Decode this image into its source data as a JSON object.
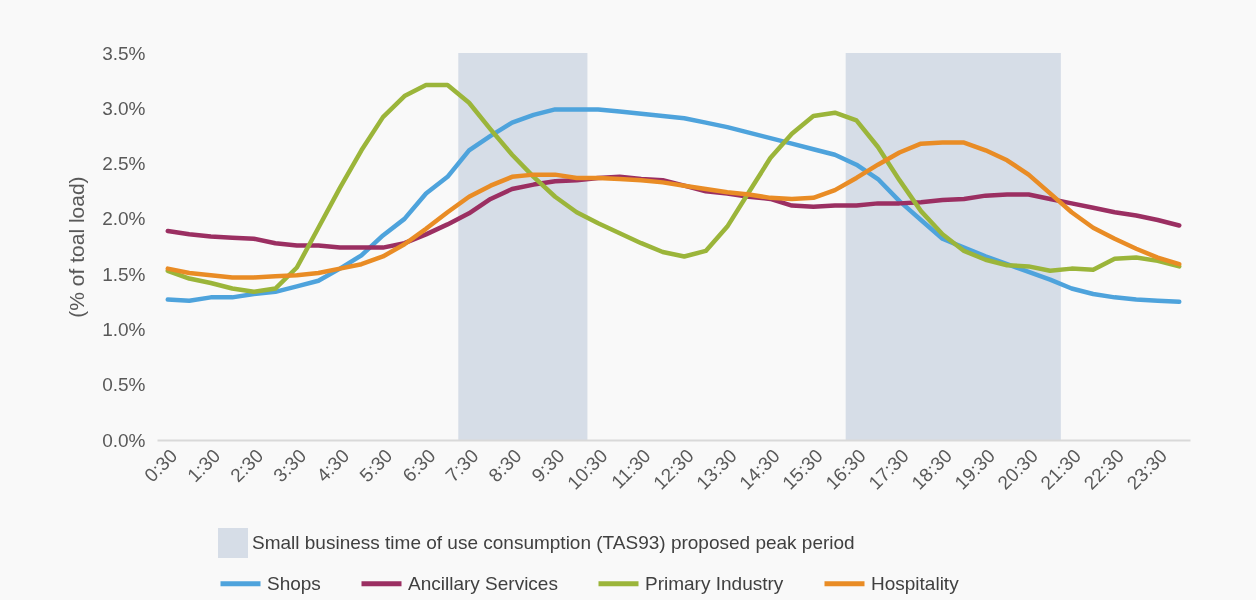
{
  "chart_data": {
    "type": "line",
    "ylabel": "(% of toal load)",
    "categories": [
      "0:30",
      null,
      "1:30",
      null,
      "2:30",
      null,
      "3:30",
      null,
      "4:30",
      null,
      "5:30",
      null,
      "6:30",
      null,
      "7:30",
      null,
      "8:30",
      null,
      "9:30",
      null,
      "10:30",
      null,
      "11:30",
      null,
      "12:30",
      null,
      "13:30",
      null,
      "14:30",
      null,
      "15:30",
      null,
      "16:30",
      null,
      "17:30",
      null,
      "18:30",
      null,
      "19:30",
      null,
      "20:30",
      null,
      "21:30",
      null,
      "22:30",
      null,
      "23:30",
      null
    ],
    "series": [
      {
        "name": "Shops",
        "color": "#4ea3dc",
        "values": [
          1.27,
          1.26,
          1.29,
          1.29,
          1.32,
          1.34,
          1.39,
          1.44,
          1.55,
          1.67,
          1.85,
          2.0,
          2.23,
          2.38,
          2.62,
          2.75,
          2.87,
          2.94,
          2.99,
          2.99,
          2.99,
          2.97,
          2.95,
          2.93,
          2.91,
          2.87,
          2.83,
          2.78,
          2.73,
          2.68,
          2.63,
          2.58,
          2.49,
          2.36,
          2.16,
          1.99,
          1.82,
          1.74,
          1.66,
          1.59,
          1.52,
          1.45,
          1.37,
          1.32,
          1.29,
          1.27,
          1.26,
          1.25
        ]
      },
      {
        "name": "Ancillary Services",
        "color": "#9b2f62",
        "values": [
          1.89,
          1.86,
          1.84,
          1.83,
          1.82,
          1.78,
          1.76,
          1.76,
          1.74,
          1.74,
          1.74,
          1.78,
          1.86,
          1.95,
          2.05,
          2.18,
          2.27,
          2.31,
          2.34,
          2.35,
          2.37,
          2.38,
          2.36,
          2.35,
          2.3,
          2.25,
          2.23,
          2.2,
          2.18,
          2.12,
          2.11,
          2.12,
          2.12,
          2.14,
          2.14,
          2.15,
          2.17,
          2.18,
          2.21,
          2.22,
          2.22,
          2.18,
          2.14,
          2.1,
          2.06,
          2.03,
          1.99,
          1.94
        ]
      },
      {
        "name": "Primary Industry",
        "color": "#9bb53a",
        "values": [
          1.53,
          1.46,
          1.42,
          1.37,
          1.34,
          1.37,
          1.56,
          1.92,
          2.28,
          2.62,
          2.92,
          3.11,
          3.21,
          3.21,
          3.05,
          2.81,
          2.58,
          2.38,
          2.2,
          2.06,
          1.96,
          1.87,
          1.78,
          1.7,
          1.66,
          1.71,
          1.93,
          2.24,
          2.55,
          2.77,
          2.93,
          2.96,
          2.89,
          2.65,
          2.35,
          2.07,
          1.86,
          1.71,
          1.63,
          1.58,
          1.57,
          1.53,
          1.55,
          1.54,
          1.64,
          1.65,
          1.62,
          1.57
        ]
      },
      {
        "name": "Hospitality",
        "color": "#e98c25",
        "values": [
          1.55,
          1.51,
          1.49,
          1.47,
          1.47,
          1.48,
          1.49,
          1.51,
          1.55,
          1.59,
          1.66,
          1.77,
          1.91,
          2.06,
          2.2,
          2.3,
          2.38,
          2.4,
          2.4,
          2.37,
          2.37,
          2.36,
          2.35,
          2.33,
          2.3,
          2.27,
          2.24,
          2.22,
          2.19,
          2.18,
          2.19,
          2.26,
          2.37,
          2.49,
          2.6,
          2.68,
          2.69,
          2.69,
          2.62,
          2.53,
          2.4,
          2.23,
          2.06,
          1.92,
          1.82,
          1.73,
          1.65,
          1.59
        ]
      }
    ],
    "ylim": [
      0,
      3.5
    ],
    "yticks": [
      {
        "value": 0,
        "label": "0.0%"
      },
      {
        "value": 0.5,
        "label": "0.5%"
      },
      {
        "value": 1,
        "label": "1.0%"
      },
      {
        "value": 1.5,
        "label": "1.5%"
      },
      {
        "value": 2,
        "label": "2.0%"
      },
      {
        "value": 2.5,
        "label": "2.5%"
      },
      {
        "value": 3,
        "label": "3.0%"
      },
      {
        "value": 3.5,
        "label": "3.5%"
      }
    ],
    "bands": [
      {
        "axis": "x",
        "from": "7:30",
        "to": "10:30",
        "label": "Small business time of use consumption (TAS93) proposed peak period",
        "color": "#d6dde7"
      },
      {
        "axis": "x",
        "from": "16:30",
        "to": "21:30",
        "color": "#d6dde7"
      }
    ],
    "grid": false,
    "legend": "bottom",
    "line_style": "solid",
    "marker": "none"
  }
}
